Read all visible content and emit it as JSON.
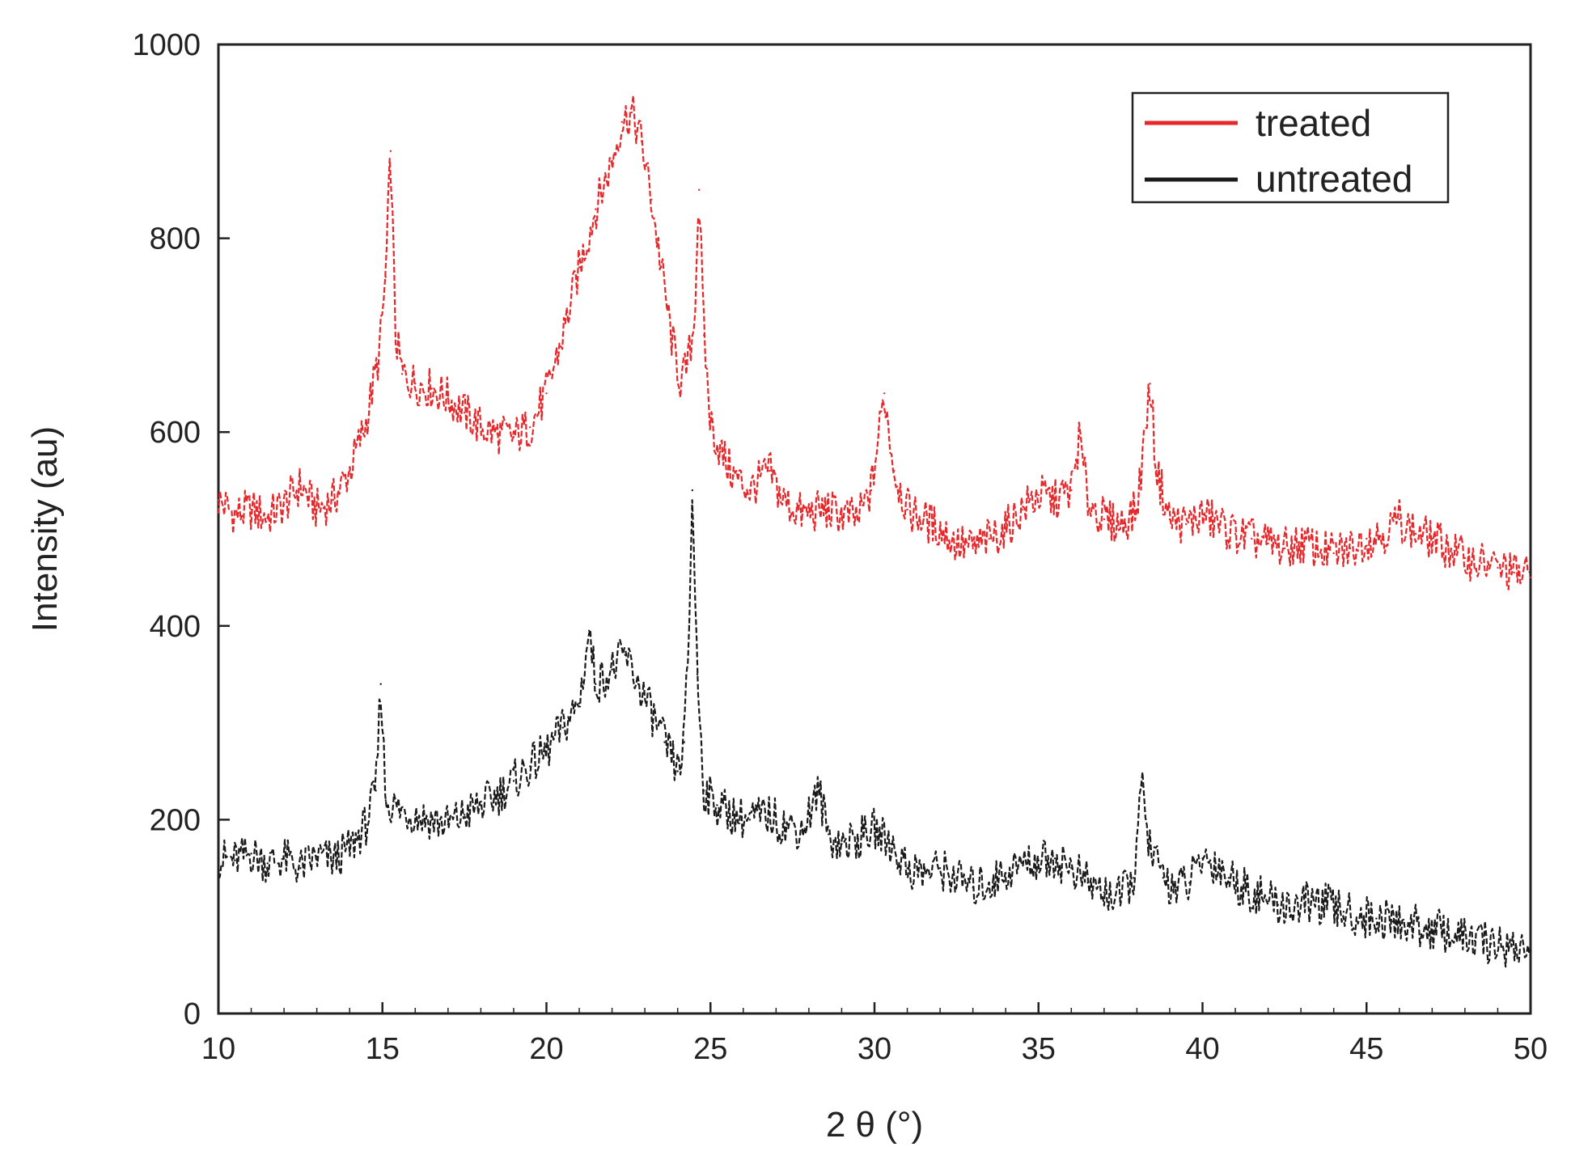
{
  "chart_data": {
    "type": "line",
    "xlabel": "2 θ (°)",
    "ylabel": "Intensity (au)",
    "xlim": [
      10,
      50
    ],
    "ylim": [
      0,
      1000
    ],
    "xticks": [
      "10",
      "15",
      "20",
      "25",
      "30",
      "35",
      "40",
      "45",
      "50"
    ],
    "yticks": [
      "0",
      "200",
      "400",
      "600",
      "800",
      "1000"
    ],
    "grid": false,
    "legend_position": "top-right",
    "series": [
      {
        "name": "treated",
        "color": "#e8272a",
        "points": [
          [
            10.0,
            530
          ],
          [
            10.5,
            515
          ],
          [
            11.0,
            520
          ],
          [
            11.5,
            512
          ],
          [
            12.0,
            525
          ],
          [
            12.5,
            545
          ],
          [
            13.0,
            520
          ],
          [
            13.5,
            530
          ],
          [
            14.0,
            560
          ],
          [
            14.5,
            610
          ],
          [
            14.9,
            680
          ],
          [
            15.1,
            760
          ],
          [
            15.25,
            890
          ],
          [
            15.4,
            700
          ],
          [
            15.6,
            660
          ],
          [
            16.0,
            650
          ],
          [
            16.5,
            645
          ],
          [
            17.0,
            635
          ],
          [
            17.5,
            620
          ],
          [
            18.0,
            605
          ],
          [
            18.5,
            598
          ],
          [
            19.0,
            595
          ],
          [
            19.5,
            605
          ],
          [
            20.0,
            640
          ],
          [
            20.5,
            700
          ],
          [
            21.0,
            770
          ],
          [
            21.5,
            830
          ],
          [
            22.0,
            880
          ],
          [
            22.3,
            920
          ],
          [
            22.6,
            930
          ],
          [
            22.9,
            900
          ],
          [
            23.2,
            840
          ],
          [
            23.5,
            770
          ],
          [
            23.8,
            700
          ],
          [
            24.1,
            650
          ],
          [
            24.3,
            670
          ],
          [
            24.5,
            710
          ],
          [
            24.65,
            850
          ],
          [
            24.8,
            700
          ],
          [
            25.0,
            610
          ],
          [
            25.3,
            580
          ],
          [
            25.7,
            555
          ],
          [
            26.2,
            540
          ],
          [
            26.8,
            560
          ],
          [
            27.2,
            530
          ],
          [
            27.8,
            515
          ],
          [
            28.5,
            520
          ],
          [
            29.0,
            515
          ],
          [
            29.5,
            510
          ],
          [
            29.9,
            540
          ],
          [
            30.3,
            640
          ],
          [
            30.6,
            560
          ],
          [
            31.0,
            520
          ],
          [
            31.5,
            510
          ],
          [
            32.0,
            500
          ],
          [
            32.5,
            485
          ],
          [
            33.0,
            480
          ],
          [
            33.5,
            490
          ],
          [
            34.0,
            500
          ],
          [
            34.5,
            520
          ],
          [
            35.0,
            535
          ],
          [
            35.5,
            530
          ],
          [
            36.0,
            540
          ],
          [
            36.25,
            595
          ],
          [
            36.5,
            530
          ],
          [
            37.0,
            510
          ],
          [
            37.5,
            505
          ],
          [
            38.0,
            520
          ],
          [
            38.4,
            650
          ],
          [
            38.6,
            560
          ],
          [
            39.0,
            510
          ],
          [
            39.5,
            505
          ],
          [
            40.0,
            515
          ],
          [
            40.5,
            505
          ],
          [
            41.0,
            495
          ],
          [
            41.5,
            490
          ],
          [
            42.0,
            485
          ],
          [
            42.5,
            480
          ],
          [
            43.0,
            485
          ],
          [
            43.5,
            480
          ],
          [
            44.0,
            475
          ],
          [
            44.5,
            480
          ],
          [
            45.0,
            490
          ],
          [
            45.5,
            495
          ],
          [
            46.0,
            510
          ],
          [
            46.5,
            495
          ],
          [
            47.0,
            490
          ],
          [
            47.5,
            480
          ],
          [
            48.0,
            470
          ],
          [
            48.5,
            465
          ],
          [
            49.0,
            460
          ],
          [
            49.5,
            455
          ],
          [
            50.0,
            450
          ]
        ]
      },
      {
        "name": "untreated",
        "color": "#1a1a1a",
        "points": [
          [
            10.0,
            160
          ],
          [
            10.5,
            158
          ],
          [
            11.0,
            165
          ],
          [
            11.5,
            155
          ],
          [
            12.0,
            160
          ],
          [
            12.5,
            150
          ],
          [
            13.0,
            162
          ],
          [
            13.5,
            158
          ],
          [
            14.0,
            170
          ],
          [
            14.5,
            195
          ],
          [
            14.8,
            230
          ],
          [
            14.95,
            340
          ],
          [
            15.1,
            220
          ],
          [
            15.5,
            210
          ],
          [
            16.0,
            205
          ],
          [
            16.5,
            200
          ],
          [
            17.0,
            195
          ],
          [
            17.5,
            205
          ],
          [
            18.0,
            215
          ],
          [
            18.5,
            225
          ],
          [
            19.0,
            240
          ],
          [
            19.5,
            255
          ],
          [
            20.0,
            270
          ],
          [
            20.5,
            295
          ],
          [
            21.0,
            320
          ],
          [
            21.3,
            395
          ],
          [
            21.5,
            340
          ],
          [
            22.0,
            355
          ],
          [
            22.4,
            370
          ],
          [
            22.8,
            340
          ],
          [
            23.2,
            310
          ],
          [
            23.6,
            280
          ],
          [
            24.0,
            250
          ],
          [
            24.2,
            280
          ],
          [
            24.35,
            400
          ],
          [
            24.45,
            540
          ],
          [
            24.6,
            350
          ],
          [
            24.8,
            230
          ],
          [
            25.2,
            215
          ],
          [
            25.7,
            205
          ],
          [
            26.2,
            200
          ],
          [
            26.8,
            205
          ],
          [
            27.2,
            195
          ],
          [
            27.8,
            190
          ],
          [
            28.3,
            230
          ],
          [
            28.6,
            185
          ],
          [
            29.0,
            175
          ],
          [
            29.5,
            180
          ],
          [
            30.0,
            190
          ],
          [
            30.5,
            175
          ],
          [
            31.0,
            150
          ],
          [
            31.5,
            145
          ],
          [
            32.0,
            150
          ],
          [
            32.5,
            140
          ],
          [
            33.0,
            130
          ],
          [
            33.5,
            135
          ],
          [
            34.0,
            145
          ],
          [
            34.5,
            155
          ],
          [
            35.0,
            158
          ],
          [
            35.5,
            160
          ],
          [
            36.0,
            150
          ],
          [
            36.5,
            135
          ],
          [
            37.0,
            125
          ],
          [
            37.5,
            120
          ],
          [
            37.9,
            140
          ],
          [
            38.15,
            235
          ],
          [
            38.4,
            170
          ],
          [
            38.8,
            140
          ],
          [
            39.2,
            130
          ],
          [
            39.6,
            135
          ],
          [
            40.0,
            160
          ],
          [
            40.4,
            155
          ],
          [
            40.8,
            140
          ],
          [
            41.3,
            130
          ],
          [
            41.8,
            120
          ],
          [
            42.3,
            112
          ],
          [
            42.8,
            110
          ],
          [
            43.3,
            115
          ],
          [
            43.8,
            112
          ],
          [
            44.3,
            105
          ],
          [
            44.8,
            100
          ],
          [
            45.3,
            98
          ],
          [
            45.8,
            95
          ],
          [
            46.3,
            92
          ],
          [
            46.8,
            88
          ],
          [
            47.3,
            85
          ],
          [
            47.8,
            80
          ],
          [
            48.3,
            75
          ],
          [
            48.8,
            72
          ],
          [
            49.3,
            70
          ],
          [
            50.0,
            65
          ]
        ]
      }
    ]
  }
}
